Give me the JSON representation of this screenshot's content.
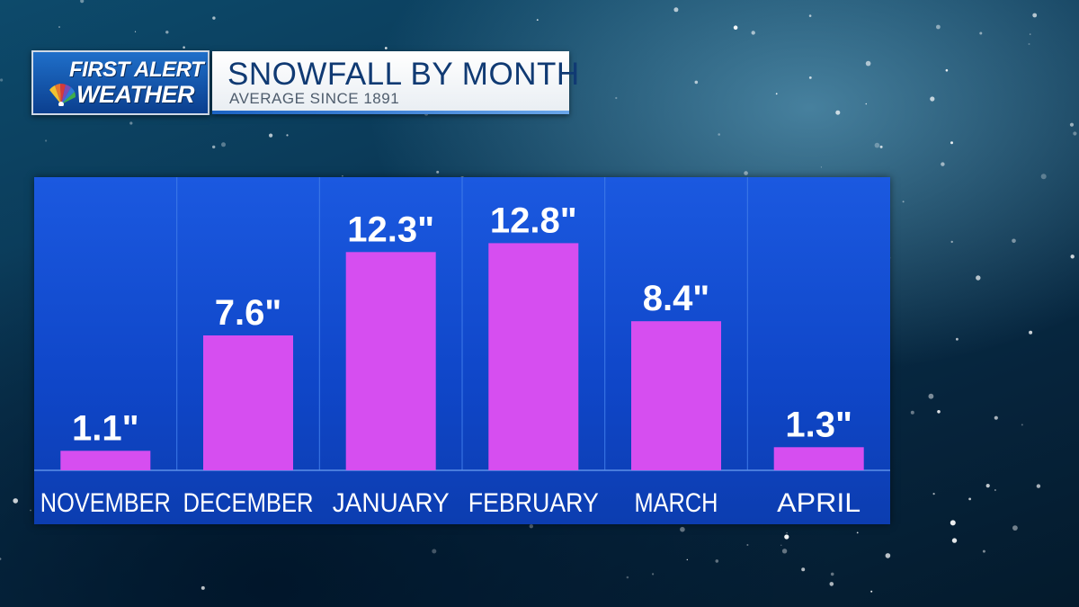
{
  "header": {
    "logo_line1": "FIRST ALERT",
    "logo_line2": "WEATHER",
    "title": "SNOWFALL BY MONTH",
    "subtitle": "AVERAGE SINCE 1891"
  },
  "colors": {
    "bar": "#d64ef0",
    "panel": "#1550d6",
    "divider": "#3f7be8"
  },
  "chart_data": {
    "type": "bar",
    "title": "SNOWFALL BY MONTH",
    "subtitle": "AVERAGE SINCE 1891",
    "categories": [
      "NOVEMBER",
      "DECEMBER",
      "JANUARY",
      "FEBRUARY",
      "MARCH",
      "APRIL"
    ],
    "values": [
      1.1,
      7.6,
      12.3,
      12.8,
      8.4,
      1.3
    ],
    "value_labels": [
      "1.1\"",
      "7.6\"",
      "12.3\"",
      "12.8\"",
      "8.4\"",
      "1.3\""
    ],
    "xlabel": "",
    "ylabel": "",
    "ylim": [
      0,
      15
    ],
    "grid": false,
    "legend": "none"
  }
}
